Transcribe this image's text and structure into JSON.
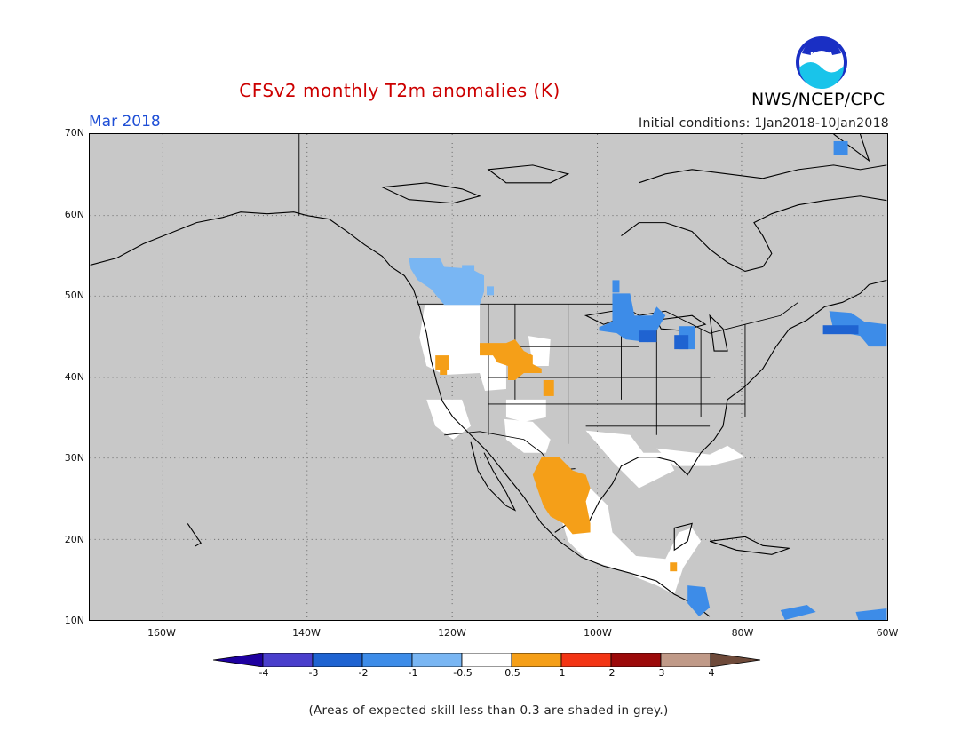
{
  "header": {
    "title": "CFSv2 monthly T2m anomalies (K)",
    "period": "Mar 2018",
    "initial_conditions": "Initial conditions: 1Jan2018-10Jan2018",
    "agency": "NWS/NCEP/CPC",
    "logo_text": "NOAA"
  },
  "map": {
    "lat_labels": [
      "70N",
      "60N",
      "50N",
      "40N",
      "30N",
      "20N",
      "10N"
    ],
    "lon_labels": [
      "160W",
      "140W",
      "120W",
      "100W",
      "80W",
      "60W"
    ],
    "extent": {
      "lon": [
        -170,
        -60
      ],
      "lat": [
        10,
        70
      ]
    },
    "grid": "dotted",
    "no_skill_color": "#c8c8c8"
  },
  "colorbar": {
    "labels": [
      "-4",
      "-3",
      "-2",
      "-1",
      "-0.5",
      "0.5",
      "1",
      "2",
      "3",
      "4"
    ],
    "colors": [
      "#1e00a0",
      "#4a3fcc",
      "#1f63d1",
      "#3d8ce8",
      "#79b6f3",
      "#ffffff",
      "#f59f18",
      "#f33514",
      "#9c0a0a",
      "#c09a88",
      "#6e4a3a"
    ]
  },
  "footnote": "(Areas of expected skill less than 0.3 are shaded in grey.)"
}
